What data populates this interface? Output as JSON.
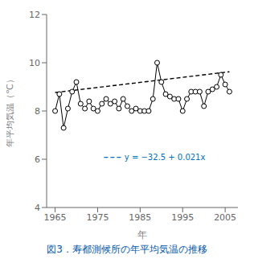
{
  "chart_data": {
    "type": "line",
    "xlabel": "年",
    "ylabel": "年平均気温（℃）",
    "caption": {
      "text": "図3．寿都測候所の年平均気温の推移",
      "color": "#0055aa"
    },
    "annotations": [
      {
        "text": "y = −32.5 + 0.021x",
        "color": "#0070c0",
        "line_style": "dashed"
      }
    ],
    "series": [
      {
        "type": "line",
        "color": "#000000",
        "marker": "circle_open",
        "line_style": "solid",
        "x": [
          1965,
          1966,
          1967,
          1968,
          1969,
          1970,
          1971,
          1972,
          1973,
          1974,
          1975,
          1976,
          1977,
          1978,
          1979,
          1980,
          1981,
          1982,
          1983,
          1984,
          1985,
          1986,
          1987,
          1988,
          1989,
          1990,
          1991,
          1992,
          1993,
          1994,
          1995,
          1996,
          1997,
          1998,
          1999,
          2000,
          2001,
          2002,
          2003,
          2004,
          2005,
          2006
        ],
        "values": [
          8.0,
          8.7,
          7.3,
          8.1,
          8.8,
          9.2,
          8.3,
          8.1,
          8.4,
          8.1,
          8.0,
          8.3,
          8.5,
          8.3,
          8.4,
          8.1,
          8.5,
          8.2,
          8.0,
          8.1,
          8.0,
          8.0,
          8.0,
          8.5,
          10.0,
          9.2,
          8.7,
          8.6,
          8.5,
          8.5,
          8.0,
          8.5,
          8.8,
          8.8,
          8.8,
          8.2,
          8.8,
          8.9,
          9.0,
          9.5,
          9.1,
          8.8
        ]
      },
      {
        "type": "line",
        "color": "#000000",
        "line_style": "dashed",
        "x": [
          1965,
          2006
        ],
        "values": [
          8.765,
          9.626
        ]
      }
    ],
    "xlim": [
      1963,
      2008
    ],
    "ylim": [
      4,
      12
    ],
    "xticks": [
      1965,
      1975,
      1985,
      1995,
      2005
    ],
    "yticks": [
      4,
      6,
      8,
      10,
      12
    ],
    "grid": false
  }
}
